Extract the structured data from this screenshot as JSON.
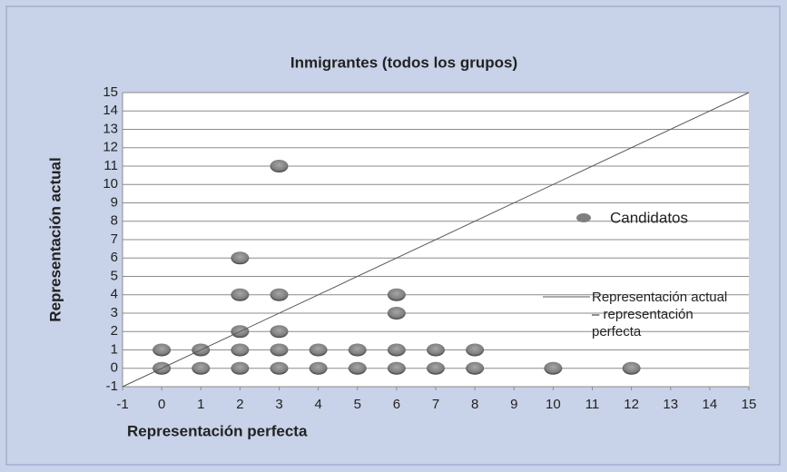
{
  "chart_data": {
    "type": "scatter",
    "title": "Inmigrantes (todos los grupos)",
    "xlabel": "Representación perfecta",
    "ylabel": "Representación actual",
    "xlim": [
      -1,
      15
    ],
    "ylim": [
      -1,
      15
    ],
    "xticks": [
      -1,
      0,
      1,
      2,
      3,
      4,
      5,
      6,
      7,
      8,
      9,
      10,
      11,
      12,
      13,
      14,
      15
    ],
    "yticks": [
      -1,
      0,
      1,
      2,
      3,
      4,
      5,
      6,
      7,
      8,
      9,
      10,
      11,
      12,
      13,
      14,
      15
    ],
    "grid": true,
    "series": [
      {
        "name": "Candidatos",
        "color": "#7f7f7f",
        "type": "scatter",
        "x": [
          0,
          0,
          1,
          1,
          2,
          2,
          2,
          2,
          2,
          3,
          3,
          3,
          3,
          3,
          4,
          4,
          5,
          5,
          6,
          6,
          6,
          6,
          7,
          7,
          8,
          8,
          10,
          12
        ],
        "values": [
          0,
          1,
          0,
          1,
          0,
          1,
          2,
          4,
          6,
          0,
          1,
          2,
          4,
          11,
          0,
          1,
          0,
          1,
          0,
          1,
          3,
          4,
          0,
          1,
          0,
          1,
          0,
          0
        ]
      },
      {
        "name": "Representación actual – representación perfecta",
        "color": "#595959",
        "type": "line",
        "x": [
          -1,
          15
        ],
        "values": [
          -1,
          15
        ]
      }
    ]
  }
}
